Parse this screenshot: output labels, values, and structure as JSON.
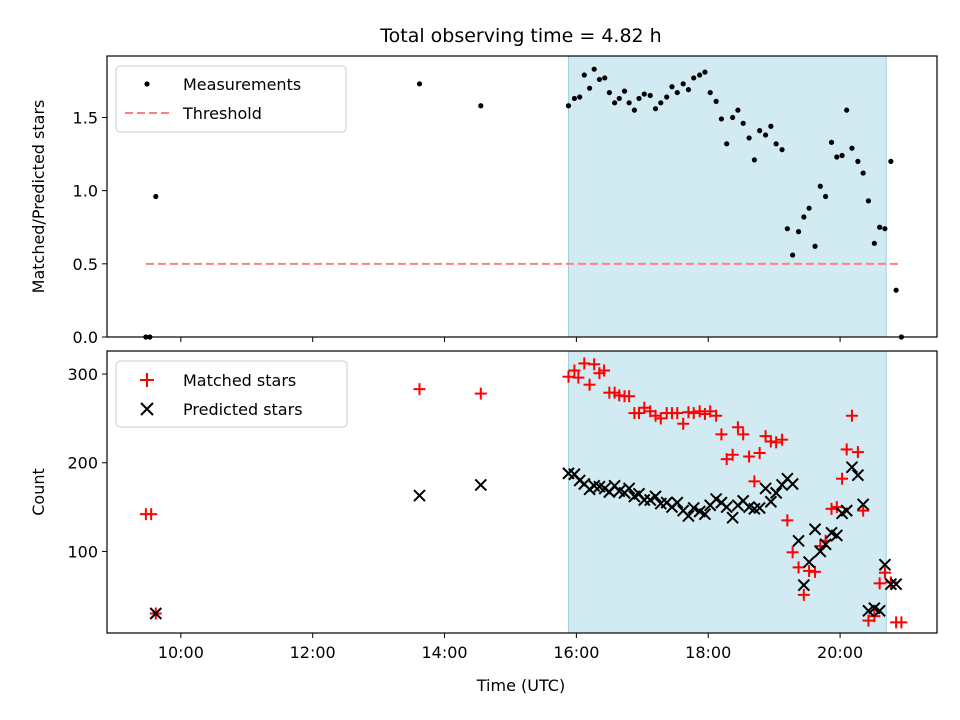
{
  "chart_data": {
    "type": "scatter",
    "title": "Total observing time = 4.82 h",
    "xlabel": "Time (UTC)",
    "xlim": [
      8.88,
      21.47
    ],
    "x_ticks": [
      10,
      12,
      14,
      16,
      18,
      20
    ],
    "x_tick_labels": [
      "10:00",
      "12:00",
      "14:00",
      "16:00",
      "18:00",
      "20:00"
    ],
    "shaded_interval": {
      "x_start": 15.88,
      "x_end": 20.7,
      "color": "#add8e6"
    },
    "panels": [
      {
        "id": "ratio",
        "ylabel": "Matched/Predicted stars",
        "ylim": [
          0,
          1.92
        ],
        "y_ticks": [
          0.0,
          0.5,
          1.0,
          1.5
        ],
        "y_tick_labels": [
          "0.0",
          "0.5",
          "1.0",
          "1.5"
        ],
        "legend": {
          "position": "upper-left",
          "entries": [
            "Measurements",
            "Threshold"
          ]
        },
        "series": [
          {
            "name": "Measurements",
            "marker": "dot",
            "color": "#000000",
            "points": [
              [
                9.47,
                0.0
              ],
              [
                9.53,
                0.0
              ],
              [
                9.62,
                0.96
              ],
              [
                13.62,
                1.73
              ],
              [
                14.55,
                1.58
              ],
              [
                15.88,
                1.58
              ],
              [
                15.97,
                1.63
              ],
              [
                16.05,
                1.64
              ],
              [
                16.12,
                1.79
              ],
              [
                16.2,
                1.7
              ],
              [
                16.27,
                1.83
              ],
              [
                16.35,
                1.76
              ],
              [
                16.43,
                1.77
              ],
              [
                16.5,
                1.67
              ],
              [
                16.58,
                1.6
              ],
              [
                16.65,
                1.63
              ],
              [
                16.73,
                1.68
              ],
              [
                16.8,
                1.6
              ],
              [
                16.88,
                1.55
              ],
              [
                16.95,
                1.63
              ],
              [
                17.03,
                1.66
              ],
              [
                17.12,
                1.65
              ],
              [
                17.2,
                1.56
              ],
              [
                17.28,
                1.6
              ],
              [
                17.37,
                1.64
              ],
              [
                17.45,
                1.71
              ],
              [
                17.53,
                1.67
              ],
              [
                17.62,
                1.73
              ],
              [
                17.7,
                1.69
              ],
              [
                17.78,
                1.77
              ],
              [
                17.87,
                1.79
              ],
              [
                17.95,
                1.81
              ],
              [
                18.03,
                1.67
              ],
              [
                18.12,
                1.61
              ],
              [
                18.2,
                1.49
              ],
              [
                18.28,
                1.32
              ],
              [
                18.37,
                1.5
              ],
              [
                18.45,
                1.55
              ],
              [
                18.53,
                1.46
              ],
              [
                18.62,
                1.36
              ],
              [
                18.7,
                1.21
              ],
              [
                18.78,
                1.41
              ],
              [
                18.87,
                1.38
              ],
              [
                18.95,
                1.44
              ],
              [
                19.03,
                1.32
              ],
              [
                19.12,
                1.28
              ],
              [
                19.2,
                0.74
              ],
              [
                19.28,
                0.56
              ],
              [
                19.37,
                0.72
              ],
              [
                19.45,
                0.82
              ],
              [
                19.53,
                0.88
              ],
              [
                19.62,
                0.62
              ],
              [
                19.7,
                1.03
              ],
              [
                19.78,
                0.96
              ],
              [
                19.87,
                1.33
              ],
              [
                19.95,
                1.23
              ],
              [
                20.03,
                1.24
              ],
              [
                20.1,
                1.55
              ],
              [
                20.18,
                1.29
              ],
              [
                20.27,
                1.2
              ],
              [
                20.35,
                1.12
              ],
              [
                20.43,
                0.93
              ],
              [
                20.52,
                0.64
              ],
              [
                20.6,
                0.75
              ],
              [
                20.68,
                0.74
              ],
              [
                20.77,
                1.2
              ],
              [
                20.85,
                0.32
              ],
              [
                20.93,
                0.0
              ]
            ]
          },
          {
            "name": "Threshold",
            "marker": "dashed-line",
            "color": "#ff8080",
            "points": [
              [
                9.47,
                0.5
              ],
              [
                20.93,
                0.5
              ]
            ]
          }
        ]
      },
      {
        "id": "counts",
        "ylabel": "Count",
        "ylim": [
          8,
          326
        ],
        "y_ticks": [
          100,
          200,
          300
        ],
        "y_tick_labels": [
          "100",
          "200",
          "300"
        ],
        "legend": {
          "position": "upper-left",
          "entries": [
            "Matched stars",
            "Predicted stars"
          ]
        },
        "series": [
          {
            "name": "Matched stars",
            "marker": "plus",
            "color": "#ff0000",
            "points": [
              [
                9.47,
                142
              ],
              [
                9.55,
                142
              ],
              [
                9.62,
                30
              ],
              [
                13.62,
                283
              ],
              [
                14.55,
                278
              ],
              [
                15.88,
                297
              ],
              [
                15.97,
                304
              ],
              [
                16.03,
                296
              ],
              [
                16.12,
                312
              ],
              [
                16.2,
                288
              ],
              [
                16.27,
                311
              ],
              [
                16.35,
                301
              ],
              [
                16.42,
                304
              ],
              [
                16.5,
                279
              ],
              [
                16.58,
                279
              ],
              [
                16.65,
                276
              ],
              [
                16.73,
                275
              ],
              [
                16.8,
                275
              ],
              [
                16.88,
                256
              ],
              [
                16.95,
                256
              ],
              [
                17.03,
                262
              ],
              [
                17.12,
                258
              ],
              [
                17.2,
                253
              ],
              [
                17.28,
                250
              ],
              [
                17.37,
                256
              ],
              [
                17.45,
                256
              ],
              [
                17.53,
                256
              ],
              [
                17.62,
                244
              ],
              [
                17.7,
                257
              ],
              [
                17.78,
                256
              ],
              [
                17.87,
                258
              ],
              [
                17.95,
                255
              ],
              [
                18.03,
                258
              ],
              [
                18.12,
                253
              ],
              [
                18.2,
                232
              ],
              [
                18.28,
                204
              ],
              [
                18.37,
                209
              ],
              [
                18.45,
                240
              ],
              [
                18.53,
                232
              ],
              [
                18.62,
                207
              ],
              [
                18.7,
                179
              ],
              [
                18.78,
                211
              ],
              [
                18.87,
                230
              ],
              [
                18.95,
                224
              ],
              [
                19.03,
                223
              ],
              [
                19.12,
                226
              ],
              [
                19.2,
                135
              ],
              [
                19.28,
                99
              ],
              [
                19.37,
                82
              ],
              [
                19.45,
                51
              ],
              [
                19.53,
                78
              ],
              [
                19.62,
                77
              ],
              [
                19.7,
                106
              ],
              [
                19.78,
                112
              ],
              [
                19.87,
                148
              ],
              [
                19.95,
                150
              ],
              [
                20.03,
                182
              ],
              [
                20.1,
                215
              ],
              [
                20.18,
                253
              ],
              [
                20.27,
                212
              ],
              [
                20.35,
                146
              ],
              [
                20.43,
                22
              ],
              [
                20.52,
                27
              ],
              [
                20.6,
                64
              ],
              [
                20.68,
                76
              ],
              [
                20.77,
                65
              ],
              [
                20.85,
                20
              ],
              [
                20.93,
                20
              ]
            ]
          },
          {
            "name": "Predicted stars",
            "marker": "x",
            "color": "#000000",
            "points": [
              [
                9.62,
                30
              ],
              [
                13.62,
                163
              ],
              [
                14.55,
                175
              ],
              [
                15.88,
                188
              ],
              [
                15.97,
                187
              ],
              [
                16.05,
                180
              ],
              [
                16.12,
                176
              ],
              [
                16.2,
                170
              ],
              [
                16.27,
                174
              ],
              [
                16.35,
                173
              ],
              [
                16.43,
                171
              ],
              [
                16.5,
                167
              ],
              [
                16.58,
                174
              ],
              [
                16.65,
                168
              ],
              [
                16.73,
                166
              ],
              [
                16.8,
                171
              ],
              [
                16.88,
                162
              ],
              [
                16.95,
                165
              ],
              [
                17.03,
                158
              ],
              [
                17.12,
                158
              ],
              [
                17.2,
                162
              ],
              [
                17.28,
                154
              ],
              [
                17.37,
                155
              ],
              [
                17.45,
                150
              ],
              [
                17.53,
                155
              ],
              [
                17.62,
                146
              ],
              [
                17.7,
                140
              ],
              [
                17.78,
                149
              ],
              [
                17.87,
                145
              ],
              [
                17.95,
                142
              ],
              [
                18.03,
                152
              ],
              [
                18.12,
                159
              ],
              [
                18.2,
                155
              ],
              [
                18.28,
                150
              ],
              [
                18.37,
                138
              ],
              [
                18.45,
                152
              ],
              [
                18.53,
                157
              ],
              [
                18.62,
                150
              ],
              [
                18.7,
                148
              ],
              [
                18.78,
                149
              ],
              [
                18.87,
                171
              ],
              [
                18.95,
                156
              ],
              [
                19.03,
                166
              ],
              [
                19.12,
                175
              ],
              [
                19.2,
                182
              ],
              [
                19.28,
                176
              ],
              [
                19.37,
                112
              ],
              [
                19.45,
                62
              ],
              [
                19.53,
                88
              ],
              [
                19.62,
                125
              ],
              [
                19.7,
                100
              ],
              [
                19.78,
                108
              ],
              [
                19.87,
                121
              ],
              [
                19.95,
                118
              ],
              [
                20.03,
                143
              ],
              [
                20.1,
                146
              ],
              [
                20.18,
                195
              ],
              [
                20.27,
                186
              ],
              [
                20.35,
                153
              ],
              [
                20.43,
                33
              ],
              [
                20.52,
                36
              ],
              [
                20.6,
                33
              ],
              [
                20.68,
                85
              ],
              [
                20.77,
                63
              ],
              [
                20.85,
                63
              ]
            ]
          }
        ]
      }
    ]
  }
}
